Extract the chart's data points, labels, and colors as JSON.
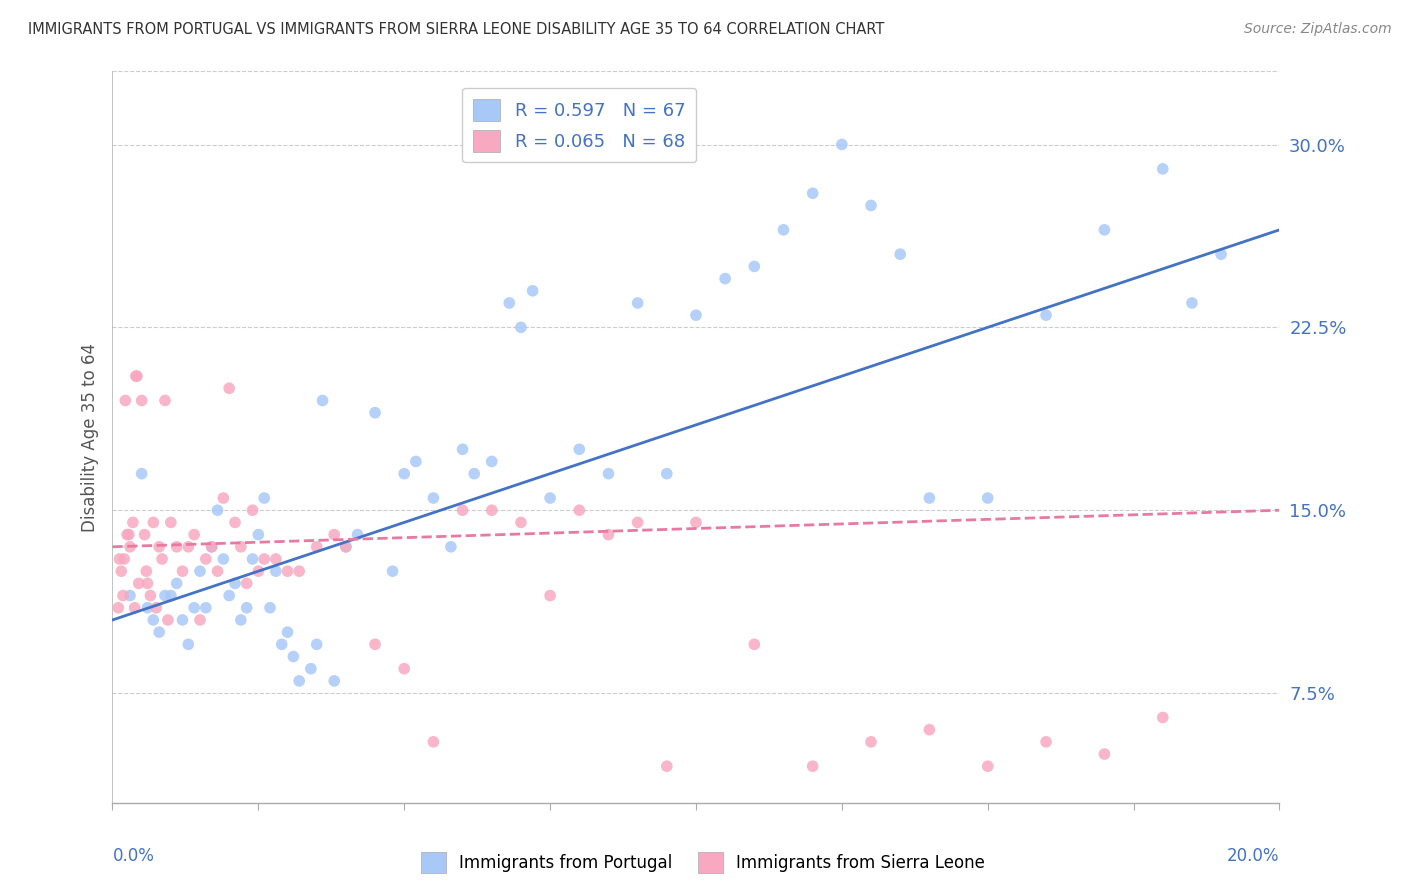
{
  "title": "IMMIGRANTS FROM PORTUGAL VS IMMIGRANTS FROM SIERRA LEONE DISABILITY AGE 35 TO 64 CORRELATION CHART",
  "source": "Source: ZipAtlas.com",
  "xlabel_bottom_left": "0.0%",
  "xlabel_bottom_right": "20.0%",
  "ylabel": "Disability Age 35 to 64",
  "right_yticks": [
    7.5,
    15.0,
    22.5,
    30.0
  ],
  "right_ytick_labels": [
    "7.5%",
    "15.0%",
    "22.5%",
    "30.0%"
  ],
  "xlim": [
    0.0,
    20.0
  ],
  "ylim": [
    3.0,
    33.0
  ],
  "portugal_R": 0.597,
  "portugal_N": 67,
  "sierraleone_R": 0.065,
  "sierraleone_N": 68,
  "portugal_color": "#A8C8F8",
  "sierraleone_color": "#F8A8C0",
  "portugal_line_color": "#4472C4",
  "sierraleone_line_color": "#E879A0",
  "background_color": "#FFFFFF",
  "grid_color": "#CCCCCC",
  "title_color": "#333333",
  "axis_label_color": "#4472C4",
  "portugal_scatter_x": [
    0.3,
    0.5,
    0.6,
    0.7,
    0.8,
    0.9,
    1.0,
    1.1,
    1.2,
    1.3,
    1.4,
    1.5,
    1.6,
    1.7,
    1.8,
    1.9,
    2.0,
    2.1,
    2.2,
    2.3,
    2.4,
    2.5,
    2.6,
    2.8,
    3.0,
    3.1,
    3.2,
    3.4,
    3.5,
    3.6,
    3.8,
    4.0,
    4.2,
    4.5,
    5.0,
    5.2,
    5.5,
    5.8,
    6.0,
    6.2,
    6.5,
    7.0,
    7.2,
    7.5,
    8.0,
    8.5,
    9.0,
    9.5,
    10.0,
    10.5,
    11.0,
    11.5,
    12.0,
    12.5,
    13.0,
    13.5,
    14.0,
    15.0,
    16.0,
    17.0,
    18.0,
    18.5,
    19.0,
    2.7,
    2.9,
    4.8,
    6.8
  ],
  "portugal_scatter_y": [
    11.5,
    16.5,
    11.0,
    10.5,
    10.0,
    11.5,
    11.5,
    12.0,
    10.5,
    9.5,
    11.0,
    12.5,
    11.0,
    13.5,
    15.0,
    13.0,
    11.5,
    12.0,
    10.5,
    11.0,
    13.0,
    14.0,
    15.5,
    12.5,
    10.0,
    9.0,
    8.0,
    8.5,
    9.5,
    19.5,
    8.0,
    13.5,
    14.0,
    19.0,
    16.5,
    17.0,
    15.5,
    13.5,
    17.5,
    16.5,
    17.0,
    22.5,
    24.0,
    15.5,
    17.5,
    16.5,
    23.5,
    16.5,
    23.0,
    24.5,
    25.0,
    26.5,
    28.0,
    30.0,
    27.5,
    25.5,
    15.5,
    15.5,
    23.0,
    26.5,
    29.0,
    23.5,
    25.5,
    11.0,
    9.5,
    12.5,
    23.5
  ],
  "sierraleone_scatter_x": [
    0.1,
    0.15,
    0.2,
    0.25,
    0.3,
    0.35,
    0.4,
    0.45,
    0.5,
    0.55,
    0.6,
    0.65,
    0.7,
    0.75,
    0.8,
    0.85,
    0.9,
    0.95,
    1.0,
    1.1,
    1.2,
    1.3,
    1.4,
    1.5,
    1.6,
    1.7,
    1.8,
    1.9,
    2.0,
    2.1,
    2.2,
    2.3,
    2.4,
    2.5,
    2.6,
    2.8,
    3.0,
    3.2,
    3.5,
    3.8,
    4.0,
    4.5,
    5.0,
    5.5,
    6.0,
    6.5,
    7.0,
    7.5,
    8.0,
    8.5,
    9.0,
    9.5,
    10.0,
    11.0,
    12.0,
    13.0,
    14.0,
    15.0,
    16.0,
    17.0,
    18.0,
    0.12,
    0.18,
    0.22,
    0.28,
    0.38,
    0.42,
    0.58
  ],
  "sierraleone_scatter_y": [
    11.0,
    12.5,
    13.0,
    14.0,
    13.5,
    14.5,
    20.5,
    12.0,
    19.5,
    14.0,
    12.0,
    11.5,
    14.5,
    11.0,
    13.5,
    13.0,
    19.5,
    10.5,
    14.5,
    13.5,
    12.5,
    13.5,
    14.0,
    10.5,
    13.0,
    13.5,
    12.5,
    15.5,
    20.0,
    14.5,
    13.5,
    12.0,
    15.0,
    12.5,
    13.0,
    13.0,
    12.5,
    12.5,
    13.5,
    14.0,
    13.5,
    9.5,
    8.5,
    5.5,
    15.0,
    15.0,
    14.5,
    11.5,
    15.0,
    14.0,
    14.5,
    4.5,
    14.5,
    9.5,
    4.5,
    5.5,
    6.0,
    4.5,
    5.5,
    5.0,
    6.5,
    13.0,
    11.5,
    19.5,
    14.0,
    11.0,
    20.5,
    12.5
  ],
  "portugal_line_x0": 0.0,
  "portugal_line_y0": 10.5,
  "portugal_line_x1": 20.0,
  "portugal_line_y1": 26.5,
  "sierraleone_line_x0": 0.0,
  "sierraleone_line_y0": 13.5,
  "sierraleone_line_x1": 20.0,
  "sierraleone_line_y1": 15.0
}
